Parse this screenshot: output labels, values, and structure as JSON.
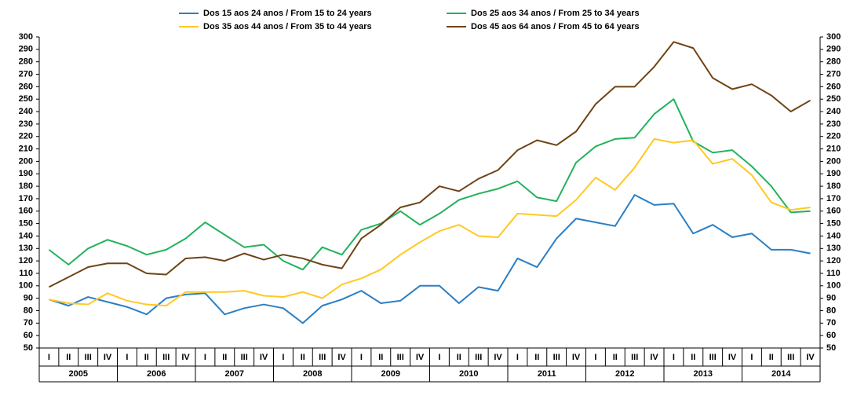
{
  "chart_data": {
    "type": "line",
    "categories": [
      "I",
      "II",
      "III",
      "IV",
      "I",
      "II",
      "III",
      "IV",
      "I",
      "II",
      "III",
      "IV",
      "I",
      "II",
      "III",
      "IV",
      "I",
      "II",
      "III",
      "IV",
      "I",
      "II",
      "III",
      "IV",
      "I",
      "II",
      "III",
      "IV",
      "I",
      "II",
      "III",
      "IV",
      "I",
      "II",
      "III",
      "IV",
      "I",
      "II",
      "III",
      "IV"
    ],
    "year_groups": [
      "2005",
      "2006",
      "2007",
      "2008",
      "2009",
      "2010",
      "2011",
      "2012",
      "2013",
      "2014"
    ],
    "ylim": [
      50,
      300
    ],
    "yticks": [
      50,
      60,
      70,
      80,
      90,
      100,
      110,
      120,
      130,
      140,
      150,
      160,
      170,
      180,
      190,
      200,
      210,
      220,
      230,
      240,
      250,
      260,
      270,
      280,
      290,
      300
    ],
    "series": [
      {
        "name": "Dos 15 aos 24 anos / From 15 to 24 years",
        "color": "#2a7fc4",
        "values": [
          89,
          84,
          91,
          87,
          83,
          77,
          90,
          93,
          94,
          77,
          82,
          85,
          82,
          70,
          84,
          89,
          96,
          86,
          88,
          100,
          100,
          86,
          99,
          96,
          122,
          115,
          138,
          154,
          151,
          148,
          173,
          165,
          166,
          142,
          149,
          139,
          142,
          129,
          129,
          126
        ]
      },
      {
        "name": "Dos 25 aos 34 anos / From 25 to 34 years",
        "color": "#22b35a",
        "values": [
          129,
          117,
          130,
          137,
          132,
          125,
          129,
          138,
          151,
          141,
          131,
          133,
          120,
          113,
          131,
          125,
          145,
          150,
          160,
          149,
          158,
          169,
          174,
          178,
          184,
          171,
          168,
          199,
          212,
          218,
          219,
          238,
          250,
          216,
          207,
          209,
          196,
          180,
          159,
          160
        ]
      },
      {
        "name": "Dos 35 aos 44 anos / From 35 to 44 years",
        "color": "#ffc824",
        "values": [
          89,
          86,
          85,
          94,
          88,
          85,
          84,
          95,
          95,
          95,
          96,
          92,
          91,
          95,
          90,
          101,
          106,
          113,
          125,
          135,
          144,
          149,
          140,
          139,
          158,
          157,
          156,
          169,
          187,
          177,
          195,
          218,
          215,
          217,
          198,
          202,
          189,
          167,
          161,
          163
        ]
      },
      {
        "name": "Dos 45 aos 64 anos / From 45 to 64 years",
        "color": "#6e4416",
        "values": [
          99,
          107,
          115,
          118,
          118,
          110,
          109,
          122,
          123,
          120,
          126,
          121,
          125,
          122,
          117,
          114,
          138,
          149,
          163,
          167,
          180,
          176,
          186,
          193,
          209,
          217,
          213,
          224,
          246,
          260,
          260,
          276,
          296,
          291,
          267,
          258,
          262,
          253,
          240,
          249
        ]
      }
    ]
  }
}
